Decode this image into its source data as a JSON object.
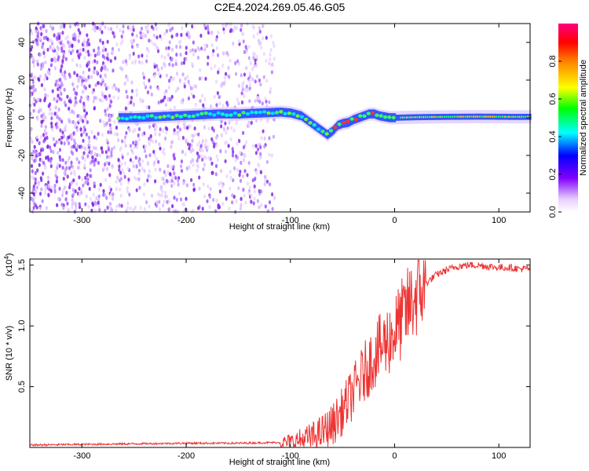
{
  "title": "C2E4.2024.269.05.46.G05",
  "chart_data": [
    {
      "type": "heatmap",
      "xlabel": "Height of straight line (km)",
      "ylabel": "Frequency (Hz)",
      "xlim": [
        -350,
        130
      ],
      "ylim": [
        -50,
        50
      ],
      "xticks": [
        -300,
        -200,
        -100,
        0,
        100
      ],
      "yticks": [
        -40,
        -20,
        0,
        20,
        40
      ],
      "colorbar": {
        "label": "Normalized spectral amplitude",
        "range": [
          0.0,
          1.0
        ],
        "ticks": [
          0.0,
          0.2,
          0.4,
          0.6,
          0.8
        ]
      },
      "ridge": {
        "x": [
          -265,
          -250,
          -230,
          -210,
          -190,
          -170,
          -150,
          -130,
          -110,
          -100,
          -90,
          -80,
          -70,
          -65,
          -60,
          -55,
          -50,
          -45,
          -40,
          -35,
          -30,
          -25,
          -20,
          -15,
          -10,
          -5,
          0,
          20,
          50,
          80,
          110,
          130
        ],
        "y": [
          0,
          0,
          0.5,
          1,
          1.5,
          2,
          2,
          2.5,
          3,
          2.5,
          1,
          -3,
          -7,
          -9,
          -7,
          -4,
          -3,
          -2.5,
          -1,
          0,
          1,
          2,
          2,
          1,
          0.5,
          0,
          0,
          0.3,
          0.5,
          0.6,
          0.5,
          0.5
        ]
      },
      "noise_x_range": [
        -350,
        -115
      ]
    },
    {
      "type": "line",
      "xlabel": "Height of straight line (km)",
      "ylabel": "SNR (10 * v/v)",
      "scale_label": "(x10",
      "scale_exponent": "4",
      "xlim": [
        -350,
        130
      ],
      "ylim": [
        0,
        1.55
      ],
      "xticks": [
        -300,
        -200,
        -100,
        0,
        100
      ],
      "yticks": [
        0.5,
        1.0,
        1.5
      ],
      "color": "#ee3333",
      "series": [
        {
          "x": [
            -350,
            -300,
            -250,
            -200,
            -150,
            -120,
            -100,
            -90,
            -80,
            -70,
            -60,
            -50,
            -40,
            -30,
            -20,
            -10,
            0,
            10,
            20,
            30,
            40,
            50,
            60,
            70,
            80,
            90,
            100,
            110,
            120,
            130
          ],
          "y": [
            0.02,
            0.025,
            0.03,
            0.035,
            0.035,
            0.04,
            0.04,
            0.06,
            0.08,
            0.12,
            0.18,
            0.3,
            0.45,
            0.6,
            0.75,
            0.85,
            0.95,
            1.1,
            1.25,
            1.35,
            1.42,
            1.46,
            1.49,
            1.5,
            1.5,
            1.49,
            1.48,
            1.48,
            1.47,
            1.47
          ]
        }
      ]
    }
  ]
}
